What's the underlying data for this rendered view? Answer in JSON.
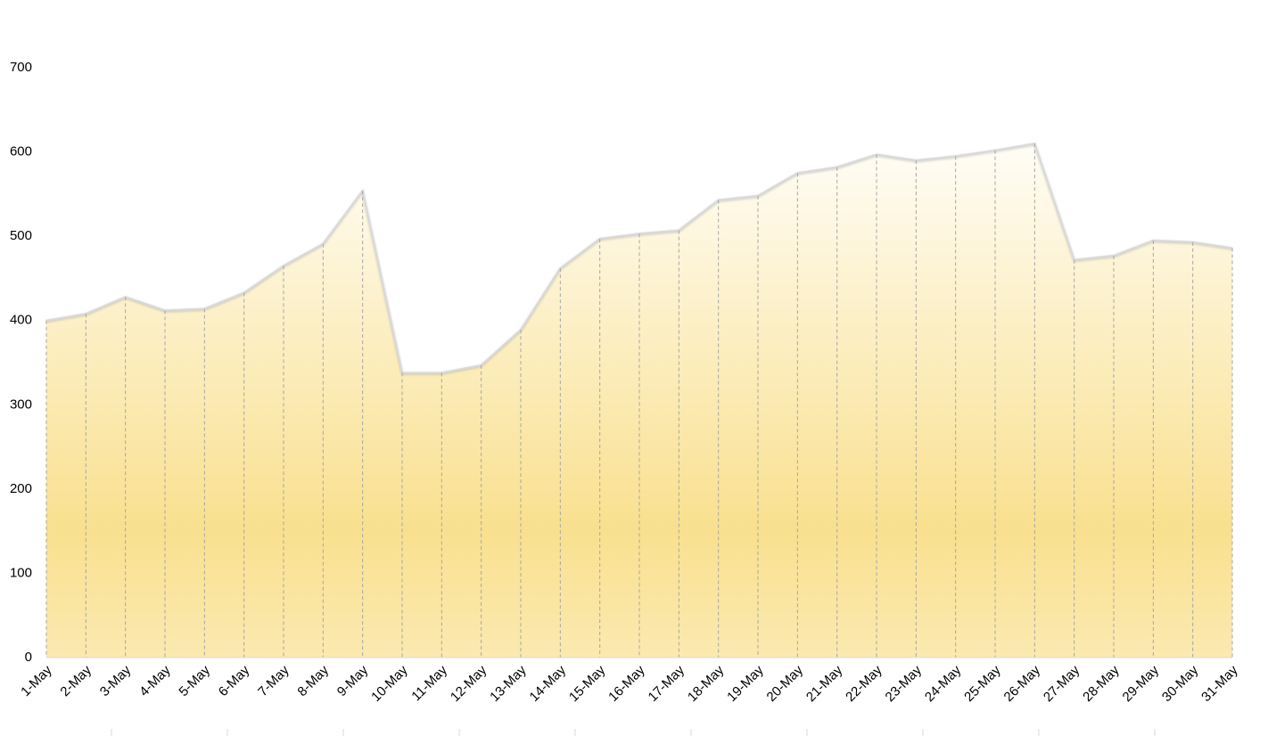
{
  "chart_data": {
    "type": "area",
    "categories": [
      "1-May",
      "2-May",
      "3-May",
      "4-May",
      "5-May",
      "6-May",
      "7-May",
      "8-May",
      "9-May",
      "10-May",
      "11-May",
      "12-May",
      "13-May",
      "14-May",
      "15-May",
      "16-May",
      "17-May",
      "18-May",
      "19-May",
      "20-May",
      "21-May",
      "22-May",
      "23-May",
      "24-May",
      "25-May",
      "26-May",
      "27-May",
      "28-May",
      "29-May",
      "30-May",
      "31-May"
    ],
    "values": [
      400,
      408,
      428,
      412,
      414,
      433,
      465,
      491,
      554,
      338,
      338,
      347,
      389,
      462,
      497,
      503,
      507,
      543,
      548,
      575,
      582,
      597,
      590,
      595,
      602,
      610,
      472,
      477,
      495,
      493,
      486
    ],
    "color": "#f9e08f",
    "ylim": [
      0,
      700
    ],
    "yticks": [
      0,
      100,
      200,
      300,
      400,
      500,
      600,
      700
    ],
    "drop_lines": true
  }
}
